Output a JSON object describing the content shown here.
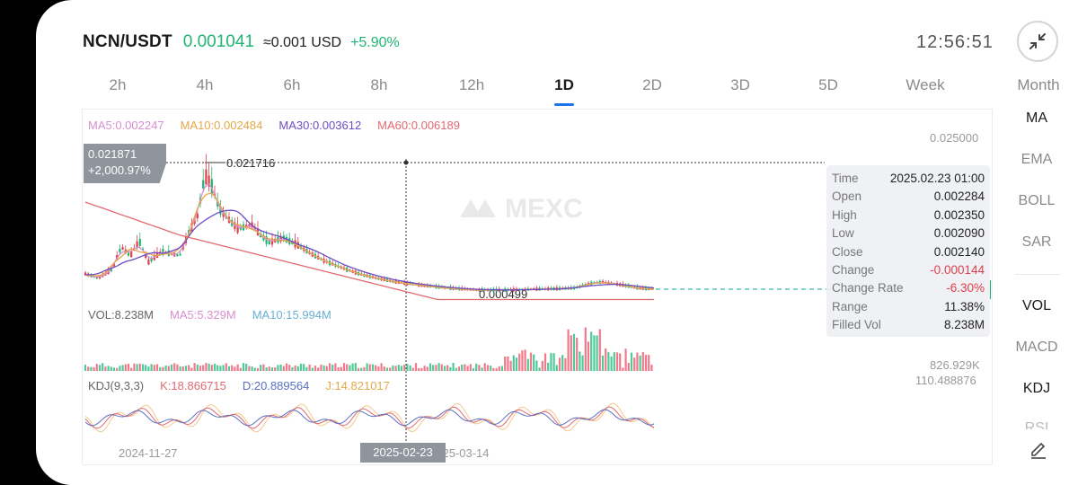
{
  "header": {
    "pair": "NCN/USDT",
    "price": "0.001041",
    "usd_equiv": "≈0.001 USD",
    "change_pct": "+5.90%",
    "clock": "12:56:51"
  },
  "colors": {
    "up": "#1fb574",
    "down": "#e0404c",
    "accent": "#1a73e8",
    "ma5": "#d88fd0",
    "ma10": "#e2a84a",
    "ma30": "#6c4dc4",
    "ma60": "#e06a72"
  },
  "tabs": [
    {
      "label": "2h"
    },
    {
      "label": "4h"
    },
    {
      "label": "6h"
    },
    {
      "label": "8h"
    },
    {
      "label": "12h"
    },
    {
      "label": "1D"
    },
    {
      "label": "2D"
    },
    {
      "label": "3D"
    },
    {
      "label": "5D"
    },
    {
      "label": "Week"
    },
    {
      "label": "Month"
    }
  ],
  "active_tab": "1D",
  "side_menu": {
    "ma": "MA",
    "ema": "EMA",
    "boll": "BOLL",
    "sar": "SAR",
    "vol": "VOL",
    "macd": "MACD",
    "kdj": "KDJ",
    "partial": "RSI"
  },
  "icons": {
    "collapse": "collapse-arrows-icon",
    "edit": "pencil-icon",
    "watermark": "mexc-logo"
  },
  "ma_legend": {
    "ma5": "MA5:0.002247",
    "ma10": "MA10:0.002484",
    "ma30": "MA30:0.003612",
    "ma60": "MA60:0.006189"
  },
  "price_axis": {
    "top_label": "0.025000"
  },
  "crosshair_box": {
    "value": "0.021871",
    "pct": "+2,000.97%"
  },
  "high_marker": "0.021716",
  "low_marker": "0.000499",
  "watermark": "MEXC",
  "tooltip": {
    "rows": [
      {
        "label": "Time",
        "value": "2025.02.23 01:00"
      },
      {
        "label": "Open",
        "value": "0.002284"
      },
      {
        "label": "High",
        "value": "0.002350"
      },
      {
        "label": "Low",
        "value": "0.002090"
      },
      {
        "label": "Close",
        "value": "0.002140"
      },
      {
        "label": "Change",
        "value": "-0.000144",
        "negative": true
      },
      {
        "label": "Change Rate",
        "value": "-6.30%",
        "negative": true
      },
      {
        "label": "Range",
        "value": "11.38%"
      },
      {
        "label": "Filled Vol",
        "value": "8.238M"
      }
    ]
  },
  "vol_legend": {
    "vol": "VOL:8.238M",
    "ma5": "MA5:5.329M",
    "ma10": "MA10:15.994M"
  },
  "vol_axis": {
    "label": "826.929K"
  },
  "kdj_legend": {
    "title": "KDJ(9,3,3)",
    "k": "K:18.866715",
    "d": "D:20.889564",
    "j": "J:14.821017"
  },
  "kdj_axis": {
    "label": "110.488876"
  },
  "dates": {
    "left": "2024-11-27",
    "chip": "2025-02-23",
    "right": "2025-03-14"
  },
  "chart_data": {
    "type": "candlestick",
    "x_start": "2024-11-27",
    "x_end": "2025-03-14",
    "price_high": 0.021716,
    "price_low": 0.000499,
    "last_price": 0.001041,
    "ylim": [
      0,
      0.025
    ],
    "series": [
      {
        "name": "MA5",
        "value": 0.002247
      },
      {
        "name": "MA10",
        "value": 0.002484
      },
      {
        "name": "MA30",
        "value": 0.003612
      },
      {
        "name": "MA60",
        "value": 0.006189
      }
    ],
    "selected_candle": {
      "time": "2025.02.23 01:00",
      "open": 0.002284,
      "high": 0.00235,
      "low": 0.00209,
      "close": 0.00214
    }
  }
}
